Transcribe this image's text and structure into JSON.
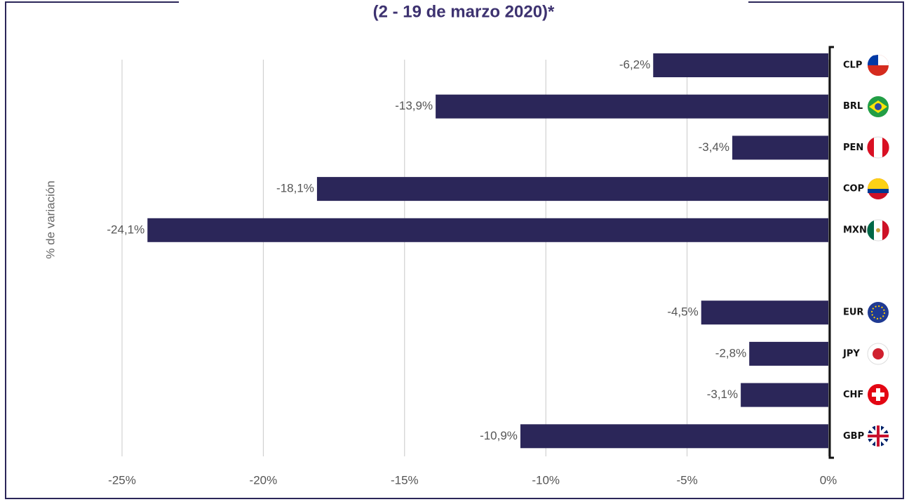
{
  "chart_data": {
    "type": "bar",
    "orientation": "horizontal",
    "title": "(2 - 19 de marzo 2020)*",
    "y_axis_label": "% de variación",
    "categories": [
      "CLP",
      "BRL",
      "PEN",
      "COP",
      "MXN",
      null,
      "EUR",
      "JPY",
      "CHF",
      "GBP"
    ],
    "values": [
      -6.2,
      -13.9,
      -3.4,
      -18.1,
      -24.1,
      null,
      -4.5,
      -2.8,
      -3.1,
      -10.9
    ],
    "value_labels": [
      "-6,2%",
      "-13,9%",
      "-3,4%",
      "-18,1%",
      "-24,1%",
      null,
      "-4,5%",
      "-2,8%",
      "-3,1%",
      "-10,9%"
    ],
    "color": "#2b2659",
    "xlim": [
      -25,
      0
    ],
    "xticks": [
      {
        "value": -25,
        "label": "-25%"
      },
      {
        "value": -20,
        "label": "-20%"
      },
      {
        "value": -15,
        "label": "-15%"
      },
      {
        "value": -10,
        "label": "-10%"
      },
      {
        "value": -5,
        "label": "-5%"
      },
      {
        "value": 0,
        "label": "0%"
      }
    ],
    "grid": true
  }
}
